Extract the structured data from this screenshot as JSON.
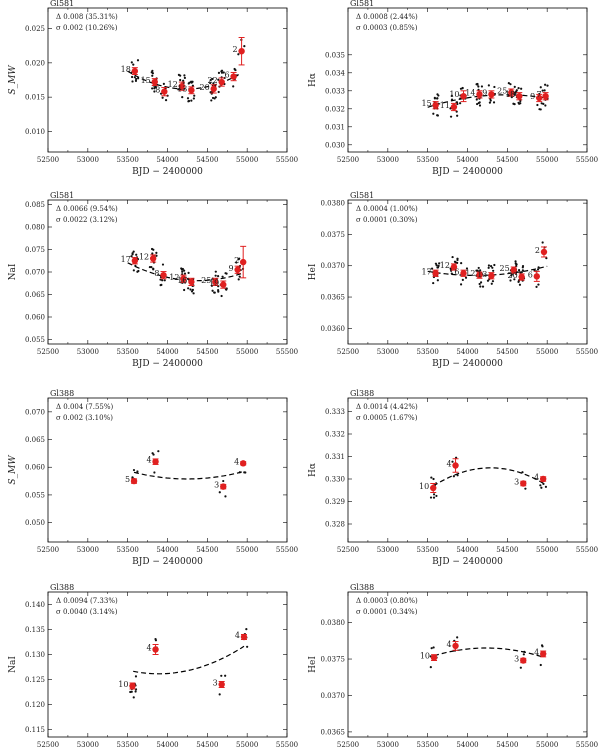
{
  "chart_data": [
    {
      "type": "scatter",
      "star": "Gl581_",
      "ylabel": "S_MW",
      "xlabel": "BJD − 2400000",
      "xlim": [
        52500,
        55500
      ],
      "xticks": [
        52500,
        53000,
        53500,
        54000,
        54500,
        55000,
        55500
      ],
      "ylim": [
        0.007,
        0.028
      ],
      "yticks": [
        0.01,
        0.015,
        0.02,
        0.025
      ],
      "ytick_labels": [
        "0.010",
        "0.015",
        "0.020",
        "0.025"
      ],
      "stats": {
        "delta": "Δ    0.008 (35.31%)",
        "sigma": "σ    0.002 (10.26%)"
      },
      "binned": [
        {
          "x": 53590,
          "y": 0.0188,
          "err": 0.0005,
          "label": "18"
        },
        {
          "x": 53840,
          "y": 0.0172,
          "err": 0.0005,
          "label": "15"
        },
        {
          "x": 53960,
          "y": 0.0158,
          "err": 0.0006,
          "label": "8"
        },
        {
          "x": 54180,
          "y": 0.0166,
          "err": 0.0006,
          "label": "12"
        },
        {
          "x": 54300,
          "y": 0.016,
          "err": 0.0005,
          "label": "13"
        },
        {
          "x": 54580,
          "y": 0.0162,
          "err": 0.0006,
          "label": "20"
        },
        {
          "x": 54680,
          "y": 0.0172,
          "err": 0.0006,
          "label": "22"
        },
        {
          "x": 54830,
          "y": 0.018,
          "err": 0.0006,
          "label": "6"
        },
        {
          "x": 54930,
          "y": 0.0217,
          "err": 0.002,
          "label": "2"
        }
      ],
      "fit_x": [
        53500,
        53800,
        54100,
        54400,
        54650,
        54900
      ],
      "fit_y": [
        0.0188,
        0.0171,
        0.0162,
        0.0164,
        0.017,
        0.0183
      ]
    },
    {
      "type": "scatter",
      "star": "Gl581",
      "ylabel": "Hα",
      "xlabel": "BJD − 2400000",
      "xlim": [
        52500,
        55500
      ],
      "xticks": [
        52500,
        53000,
        53500,
        54000,
        54500,
        55000,
        55500
      ],
      "ylim": [
        0.0296,
        0.0376
      ],
      "yticks": [
        0.03,
        0.031,
        0.032,
        0.033,
        0.034,
        0.035
      ],
      "ytick_labels": [
        "0.030",
        "0.031",
        "0.032",
        "0.033",
        "0.034",
        "0.035"
      ],
      "stats": {
        "delta": "Δ    0.0008 (2.44%)",
        "sigma": "σ    0.0003 (0.85%)"
      },
      "binned": [
        {
          "x": 53600,
          "y": 0.0322,
          "err": 0.0002,
          "label": "15"
        },
        {
          "x": 53830,
          "y": 0.0321,
          "err": 0.0002,
          "label": "11"
        },
        {
          "x": 53950,
          "y": 0.0327,
          "err": 0.0003,
          "label": "10"
        },
        {
          "x": 54150,
          "y": 0.0328,
          "err": 0.0002,
          "label": "14"
        },
        {
          "x": 54300,
          "y": 0.0328,
          "err": 0.0002,
          "label": "9"
        },
        {
          "x": 54550,
          "y": 0.0329,
          "err": 0.0002,
          "label": "25"
        },
        {
          "x": 54650,
          "y": 0.0327,
          "err": 0.0002,
          "label": "18"
        },
        {
          "x": 54900,
          "y": 0.0326,
          "err": 0.0002,
          "label": "9"
        },
        {
          "x": 54980,
          "y": 0.0327,
          "err": 0.0002,
          "label": "7"
        }
      ],
      "fit_x": [
        53500,
        53800,
        54100,
        54400,
        54700,
        55000
      ],
      "fit_y": [
        0.0321,
        0.0324,
        0.0327,
        0.0328,
        0.0327,
        0.0326
      ]
    },
    {
      "type": "scatter",
      "star": "Gl581_",
      "ylabel": "NaI",
      "xlabel": "BJD − 2400000",
      "xlim": [
        52500,
        55500
      ],
      "xticks": [
        52500,
        53000,
        53500,
        54000,
        54500,
        55000,
        55500
      ],
      "ylim": [
        0.054,
        0.086
      ],
      "yticks": [
        0.055,
        0.06,
        0.065,
        0.07,
        0.075,
        0.08,
        0.085
      ],
      "ytick_labels": [
        "0.055",
        "0.060",
        "0.065",
        "0.070",
        "0.075",
        "0.080",
        "0.085"
      ],
      "stats": {
        "delta": "Δ    0.0066 (9.54%)",
        "sigma": "σ    0.0022 (3.12%)"
      },
      "binned": [
        {
          "x": 53590,
          "y": 0.0725,
          "err": 0.0007,
          "label": "17"
        },
        {
          "x": 53820,
          "y": 0.073,
          "err": 0.0008,
          "label": "12"
        },
        {
          "x": 53950,
          "y": 0.0693,
          "err": 0.0008,
          "label": "8"
        },
        {
          "x": 54200,
          "y": 0.0685,
          "err": 0.0008,
          "label": "12"
        },
        {
          "x": 54300,
          "y": 0.0678,
          "err": 0.0008,
          "label": "16"
        },
        {
          "x": 54600,
          "y": 0.0678,
          "err": 0.0008,
          "label": "25"
        },
        {
          "x": 54700,
          "y": 0.0672,
          "err": 0.0008,
          "label": "19"
        },
        {
          "x": 54880,
          "y": 0.0705,
          "err": 0.0008,
          "label": "9"
        },
        {
          "x": 54950,
          "y": 0.0722,
          "err": 0.0035,
          "label": "2"
        }
      ],
      "fit_x": [
        53500,
        53800,
        54100,
        54400,
        54700,
        54950
      ],
      "fit_y": [
        0.0718,
        0.0702,
        0.0686,
        0.0678,
        0.0684,
        0.07
      ]
    },
    {
      "type": "scatter",
      "star": "Gl581",
      "ylabel": "HeI",
      "xlabel": "BJD − 2400000",
      "xlim": [
        52500,
        55500
      ],
      "xticks": [
        52500,
        53000,
        53500,
        54000,
        54500,
        55000,
        55500
      ],
      "ylim": [
        0.03575,
        0.03805
      ],
      "yticks": [
        0.036,
        0.0365,
        0.037,
        0.0375,
        0.038
      ],
      "ytick_labels": [
        "0.0360",
        "0.0365",
        "0.0370",
        "0.0375",
        "0.0380"
      ],
      "stats": {
        "delta": "Δ    0.0004 (1.00%)",
        "sigma": "σ    0.0001 (0.30%)"
      },
      "binned": [
        {
          "x": 53600,
          "y": 0.03688,
          "err": 5e-05,
          "label": "17"
        },
        {
          "x": 53830,
          "y": 0.03698,
          "err": 5e-05,
          "label": "12"
        },
        {
          "x": 53950,
          "y": 0.03688,
          "err": 5e-05,
          "label": "6"
        },
        {
          "x": 54150,
          "y": 0.03685,
          "err": 5e-05,
          "label": "12"
        },
        {
          "x": 54300,
          "y": 0.03684,
          "err": 5e-05,
          "label": "13"
        },
        {
          "x": 54580,
          "y": 0.03693,
          "err": 5e-05,
          "label": "25"
        },
        {
          "x": 54680,
          "y": 0.03682,
          "err": 5e-05,
          "label": "20"
        },
        {
          "x": 54870,
          "y": 0.03683,
          "err": 8e-05,
          "label": "6"
        },
        {
          "x": 54960,
          "y": 0.03722,
          "err": 8e-05,
          "label": "2"
        }
      ],
      "fit_x": [
        53500,
        53800,
        54100,
        54400,
        54700,
        55000
      ],
      "fit_y": [
        0.0369,
        0.03688,
        0.03685,
        0.03685,
        0.0369,
        0.037
      ]
    },
    {
      "type": "scatter",
      "star": "Gl388",
      "ylabel": "S_MW",
      "xlabel": "BJD − 2400000",
      "xlim": [
        52500,
        55500
      ],
      "xticks": [
        52500,
        53000,
        53500,
        54000,
        54500,
        55000,
        55500
      ],
      "ylim": [
        0.0465,
        0.0725
      ],
      "yticks": [
        0.05,
        0.055,
        0.06,
        0.065,
        0.07
      ],
      "ytick_labels": [
        "0.050",
        "0.055",
        "0.060",
        "0.065",
        "0.070"
      ],
      "stats": {
        "delta": "Δ    0.004 (7.55%)",
        "sigma": "σ    0.002 (3.10%)"
      },
      "binned": [
        {
          "x": 53580,
          "y": 0.0575,
          "err": 0.0004,
          "label": "5"
        },
        {
          "x": 53850,
          "y": 0.061,
          "err": 0.0005,
          "label": "4"
        },
        {
          "x": 54700,
          "y": 0.0565,
          "err": 0.0004,
          "label": "3"
        },
        {
          "x": 54950,
          "y": 0.0607,
          "err": 0.0003,
          "label": "4"
        }
      ],
      "fit_x": [
        53580,
        53700,
        53850,
        54100,
        54400,
        54700,
        54950
      ],
      "fit_y": [
        0.059,
        0.0587,
        0.0584,
        0.058,
        0.0579,
        0.0583,
        0.0593
      ]
    },
    {
      "type": "scatter",
      "star": "Gl388",
      "ylabel": "Hα",
      "xlabel": "BJD − 2400000",
      "xlim": [
        52500,
        55500
      ],
      "xticks": [
        52500,
        53000,
        53500,
        54000,
        54500,
        55000,
        55500
      ],
      "ylim": [
        0.3272,
        0.3336
      ],
      "yticks": [
        0.328,
        0.329,
        0.33,
        0.331,
        0.332,
        0.333
      ],
      "ytick_labels": [
        "0.328",
        "0.329",
        "0.330",
        "0.331",
        "0.332",
        "0.333"
      ],
      "stats": {
        "delta": "Δ    0.0014 (4.42%)",
        "sigma": "σ    0.0005 (1.67%)"
      },
      "binned": [
        {
          "x": 53570,
          "y": 0.3296,
          "err": 0.0002,
          "label": "10"
        },
        {
          "x": 53850,
          "y": 0.3306,
          "err": 0.0003,
          "label": "4"
        },
        {
          "x": 54700,
          "y": 0.3298,
          "err": 0.0001,
          "label": "3"
        },
        {
          "x": 54950,
          "y": 0.33,
          "err": 0.0001,
          "label": "4"
        }
      ],
      "fit_x": [
        53570,
        53800,
        54050,
        54300,
        54550,
        54800,
        54950
      ],
      "fit_y": [
        0.3297,
        0.3301,
        0.3304,
        0.3305,
        0.3304,
        0.3301,
        0.3298
      ]
    },
    {
      "type": "scatter",
      "star": "Gl388",
      "ylabel": "NaI",
      "xlabel": "BJD − 2400000",
      "xlim": [
        52500,
        55500
      ],
      "xticks": [
        52500,
        53000,
        53500,
        54000,
        54500,
        55000,
        55500
      ],
      "ylim": [
        0.1135,
        0.1425
      ],
      "yticks": [
        0.115,
        0.12,
        0.125,
        0.13,
        0.135,
        0.14
      ],
      "ytick_labels": [
        "0.115",
        "0.120",
        "0.125",
        "0.130",
        "0.135",
        "0.140"
      ],
      "stats": {
        "delta": "Δ    0.0094 (7.33%)",
        "sigma": "σ    0.0040 (3.14%)"
      },
      "binned": [
        {
          "x": 53560,
          "y": 0.1237,
          "err": 0.0006,
          "label": "10"
        },
        {
          "x": 53850,
          "y": 0.131,
          "err": 0.001,
          "label": "4"
        },
        {
          "x": 54680,
          "y": 0.124,
          "err": 0.0006,
          "label": "3"
        },
        {
          "x": 54960,
          "y": 0.1335,
          "err": 0.0005,
          "label": "4"
        }
      ],
      "fit_x": [
        53570,
        53800,
        54050,
        54300,
        54550,
        54800,
        54960
      ],
      "fit_y": [
        0.1265,
        0.1263,
        0.1264,
        0.127,
        0.128,
        0.13,
        0.1318
      ]
    },
    {
      "type": "scatter",
      "star": "Gl388",
      "ylabel": "HeI",
      "xlabel": "BJD − 2400000",
      "xlim": [
        52500,
        55500
      ],
      "xticks": [
        52500,
        53000,
        53500,
        54000,
        54500,
        55000,
        55500
      ],
      "ylim": [
        0.03643,
        0.03842
      ],
      "yticks": [
        0.0365,
        0.037,
        0.0375,
        0.038
      ],
      "ytick_labels": [
        "0.0365",
        "0.0370",
        "0.0375",
        "0.0380"
      ],
      "stats": {
        "delta": "Δ    0.0003 (0.80%)",
        "sigma": "σ    0.0001 (0.34%)"
      },
      "binned": [
        {
          "x": 53580,
          "y": 0.03752,
          "err": 4e-05,
          "label": "10"
        },
        {
          "x": 53850,
          "y": 0.03768,
          "err": 6e-05,
          "label": "4"
        },
        {
          "x": 54700,
          "y": 0.03748,
          "err": 3e-05,
          "label": "3"
        },
        {
          "x": 54950,
          "y": 0.03757,
          "err": 4e-05,
          "label": "4"
        }
      ],
      "fit_x": [
        53580,
        53800,
        54050,
        54300,
        54550,
        54800,
        54950
      ],
      "fit_y": [
        0.03755,
        0.0376,
        0.03764,
        0.03765,
        0.03763,
        0.03758,
        0.03752
      ]
    }
  ]
}
